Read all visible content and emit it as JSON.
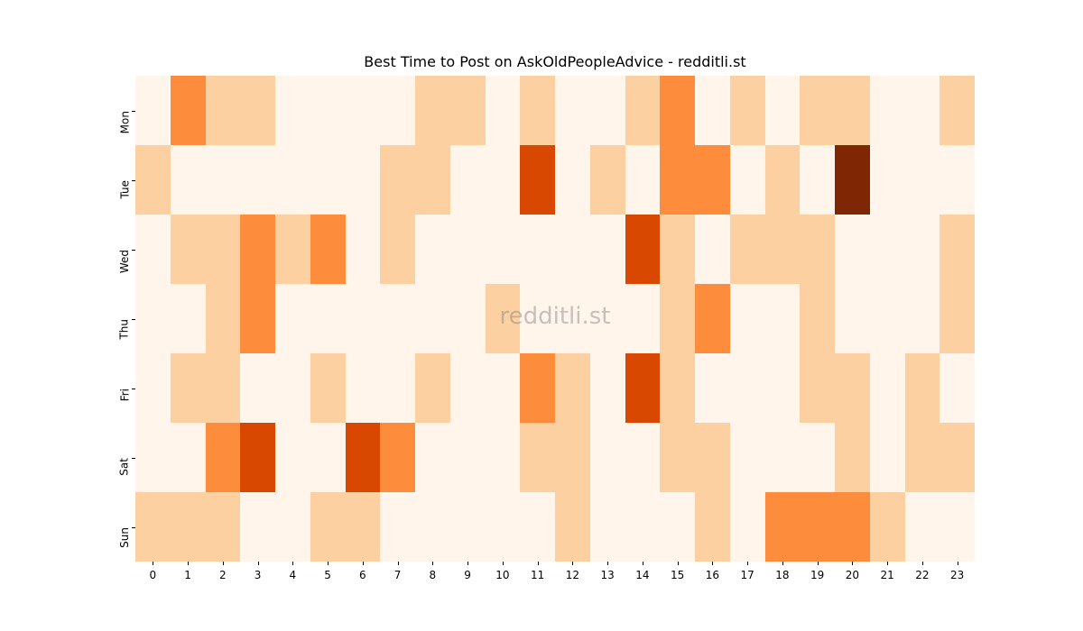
{
  "chart_data": {
    "type": "heatmap",
    "title": "Best Time to Post on AskOldPeopleAdvice - redditli.st",
    "xlabel": "",
    "ylabel": "",
    "x": [
      "0",
      "1",
      "2",
      "3",
      "4",
      "5",
      "6",
      "7",
      "8",
      "9",
      "10",
      "11",
      "12",
      "13",
      "14",
      "15",
      "16",
      "17",
      "18",
      "19",
      "20",
      "21",
      "22",
      "23"
    ],
    "y": [
      "Mon",
      "Tue",
      "Wed",
      "Thu",
      "Fri",
      "Sat",
      "Sun"
    ],
    "colormap": "Oranges",
    "level_colors": [
      "#fff5eb",
      "#fdd0a2",
      "#fd8d3c",
      "#d94801",
      "#7f2704"
    ],
    "values": [
      [
        0,
        2,
        1,
        1,
        0,
        0,
        0,
        0,
        1,
        1,
        0,
        1,
        0,
        0,
        1,
        2,
        0,
        1,
        0,
        1,
        1,
        0,
        0,
        1
      ],
      [
        1,
        0,
        0,
        0,
        0,
        0,
        0,
        1,
        1,
        0,
        0,
        3,
        0,
        1,
        0,
        2,
        2,
        0,
        1,
        0,
        4,
        0,
        0,
        0
      ],
      [
        0,
        1,
        1,
        2,
        1,
        2,
        0,
        1,
        0,
        0,
        0,
        0,
        0,
        0,
        3,
        1,
        0,
        1,
        1,
        1,
        0,
        0,
        0,
        1
      ],
      [
        0,
        0,
        1,
        2,
        0,
        0,
        0,
        0,
        0,
        0,
        1,
        0,
        0,
        0,
        0,
        1,
        2,
        0,
        0,
        1,
        0,
        0,
        0,
        1
      ],
      [
        0,
        1,
        1,
        0,
        0,
        1,
        0,
        0,
        1,
        0,
        0,
        2,
        1,
        0,
        3,
        1,
        0,
        0,
        0,
        1,
        1,
        0,
        1,
        0
      ],
      [
        0,
        0,
        2,
        3,
        0,
        0,
        3,
        2,
        0,
        0,
        0,
        1,
        1,
        0,
        0,
        1,
        1,
        0,
        0,
        0,
        1,
        0,
        1,
        1
      ],
      [
        1,
        1,
        1,
        0,
        0,
        1,
        1,
        0,
        0,
        0,
        0,
        0,
        1,
        0,
        0,
        0,
        1,
        0,
        2,
        2,
        2,
        1,
        0,
        0
      ]
    ],
    "colorbar": false,
    "grid": false,
    "watermark": "redditli.st"
  }
}
